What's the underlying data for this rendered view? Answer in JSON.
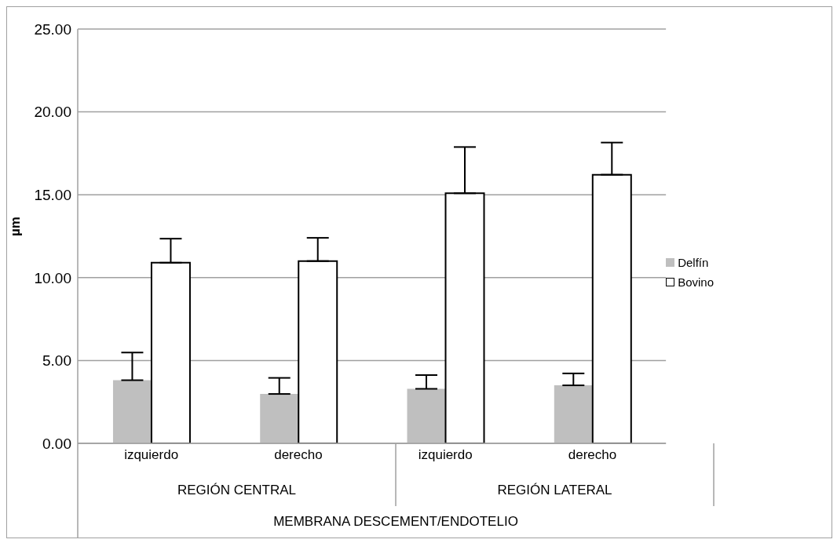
{
  "chart_data": {
    "type": "bar",
    "ylabel": "µm",
    "xlabel": "MEMBRANA DESCEMENT/ENDOTELIO",
    "categories": [
      "izquierdo",
      "derecho",
      "izquierdo",
      "derecho"
    ],
    "annotations": [
      "REGIÓN CENTRAL",
      "REGIÓN LATERAL"
    ],
    "series": [
      {
        "name": "Delfín",
        "color": "#bfbfbf",
        "values": [
          3.81,
          2.98,
          3.29,
          3.5
        ],
        "errors": [
          [
            3.81,
            5.48
          ],
          [
            2.98,
            3.95
          ],
          [
            3.29,
            4.12
          ],
          [
            3.5,
            4.22
          ]
        ]
      },
      {
        "name": "Bovino",
        "color": "#ffffff",
        "values": [
          10.9,
          11.0,
          15.09,
          16.21
        ],
        "errors": [
          [
            10.9,
            12.35
          ],
          [
            11.0,
            12.4
          ],
          [
            15.09,
            17.88
          ],
          [
            16.21,
            18.15
          ]
        ]
      }
    ],
    "ylim": [
      0,
      25
    ],
    "yticks": [
      {
        "value": 0,
        "label": "0.00"
      },
      {
        "value": 5,
        "label": "5.00"
      },
      {
        "value": 10,
        "label": "10.00"
      },
      {
        "value": 15,
        "label": "15.00"
      },
      {
        "value": 20,
        "label": "20.00"
      },
      {
        "value": 25,
        "label": "25.00"
      }
    ],
    "grid": "y",
    "legend": "right"
  }
}
